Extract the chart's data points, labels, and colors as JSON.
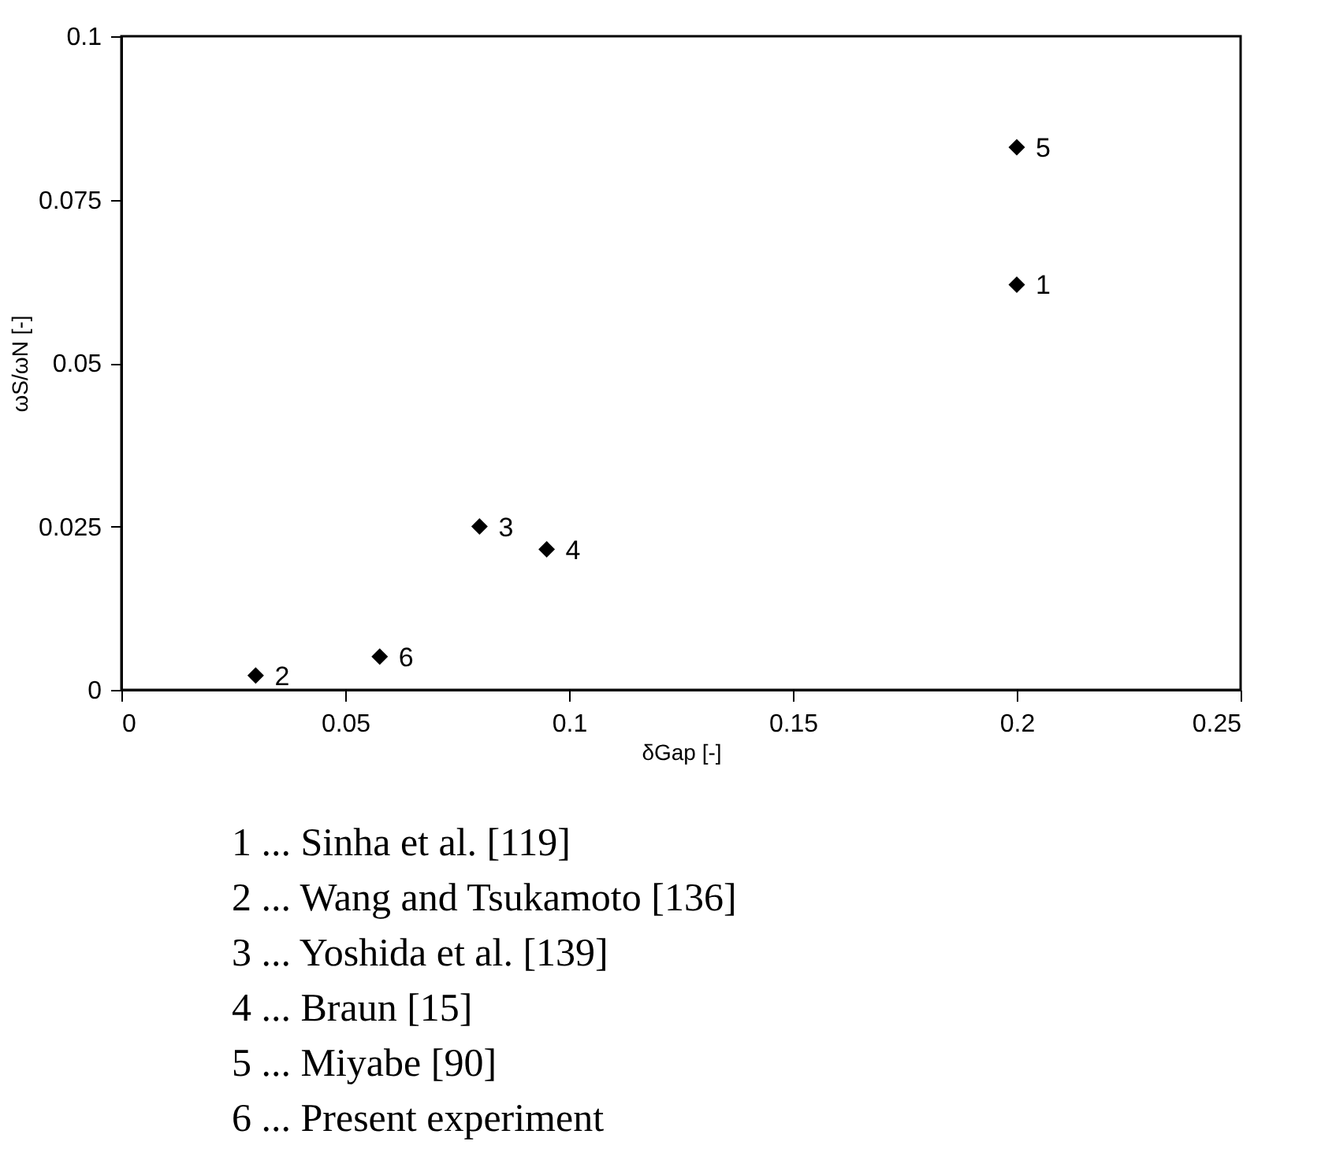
{
  "chart_data": {
    "type": "scatter",
    "xlabel": "δGap [-]",
    "ylabel": "ωS/ωN [-]",
    "x": [
      0.2,
      0.03,
      0.08,
      0.095,
      0.2,
      0.0577
    ],
    "series": [
      {
        "color": "#000000",
        "values": [
          0.062,
          0.0022,
          0.025,
          0.0215,
          0.083,
          0.0051
        ]
      }
    ],
    "marker": "diamond",
    "grid": false,
    "xlim": [
      0,
      0.25
    ],
    "xticks": [
      0,
      0.05,
      0.1,
      0.15,
      0.2,
      0.25
    ],
    "ylim": [
      0,
      0.1
    ],
    "yticks": [
      0,
      0.025,
      0.05,
      0.075,
      0.1
    ],
    "annotations": [
      {
        "text": "1",
        "x": 0.2,
        "y": 0.062
      },
      {
        "text": "2",
        "x": 0.03,
        "y": 0.0022
      },
      {
        "text": "3",
        "x": 0.08,
        "y": 0.025
      },
      {
        "text": "4",
        "x": 0.095,
        "y": 0.0215
      },
      {
        "text": "5",
        "x": 0.2,
        "y": 0.083
      },
      {
        "text": "6",
        "x": 0.0577,
        "y": 0.0051
      },
      "1 ...   Sinha et al. [119]",
      "2 ...   Wang and Tsukamoto [136]",
      "3 ...   Yoshida et al. [139]",
      "4 ...   Braun [15]",
      "5 ...   Miyabe [90]",
      "6 ...   Present experiment"
    ]
  }
}
